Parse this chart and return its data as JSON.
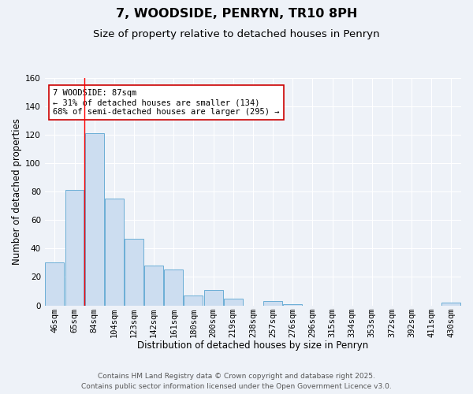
{
  "title": "7, WOODSIDE, PENRYN, TR10 8PH",
  "subtitle": "Size of property relative to detached houses in Penryn",
  "xlabel": "Distribution of detached houses by size in Penryn",
  "ylabel": "Number of detached properties",
  "categories": [
    "46sqm",
    "65sqm",
    "84sqm",
    "104sqm",
    "123sqm",
    "142sqm",
    "161sqm",
    "180sqm",
    "200sqm",
    "219sqm",
    "238sqm",
    "257sqm",
    "276sqm",
    "296sqm",
    "315sqm",
    "334sqm",
    "353sqm",
    "372sqm",
    "392sqm",
    "411sqm",
    "430sqm"
  ],
  "values": [
    30,
    81,
    121,
    75,
    47,
    28,
    25,
    7,
    11,
    5,
    0,
    3,
    1,
    0,
    0,
    0,
    0,
    0,
    0,
    0,
    2
  ],
  "bar_color": "#ccddf0",
  "bar_edge_color": "#6baed6",
  "ylim": [
    0,
    160
  ],
  "yticks": [
    0,
    20,
    40,
    60,
    80,
    100,
    120,
    140,
    160
  ],
  "red_line_index": 2,
  "annotation_title": "7 WOODSIDE: 87sqm",
  "annotation_line1": "← 31% of detached houses are smaller (134)",
  "annotation_line2": "68% of semi-detached houses are larger (295) →",
  "footer_line1": "Contains HM Land Registry data © Crown copyright and database right 2025.",
  "footer_line2": "Contains public sector information licensed under the Open Government Licence v3.0.",
  "background_color": "#eef2f8",
  "grid_color": "#ffffff",
  "title_fontsize": 11.5,
  "subtitle_fontsize": 9.5,
  "axis_label_fontsize": 8.5,
  "tick_fontsize": 7.5,
  "annotation_fontsize": 7.5,
  "footer_fontsize": 6.5
}
